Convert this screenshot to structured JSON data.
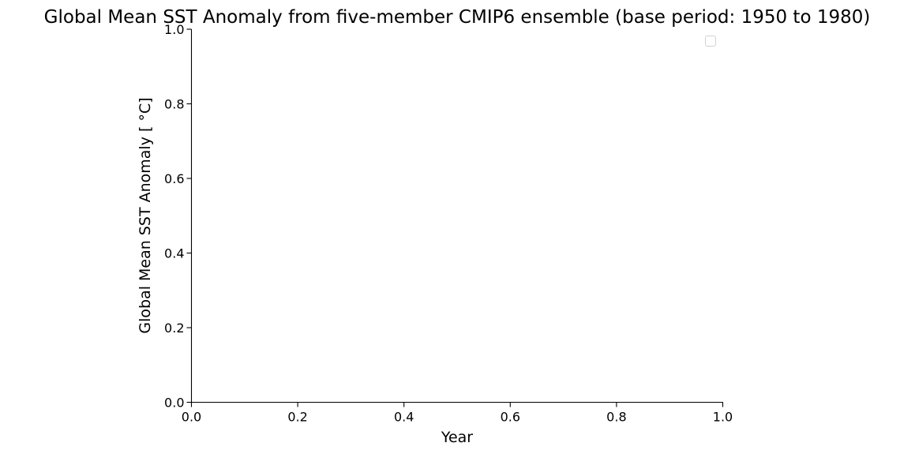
{
  "chart_data": {
    "type": "line",
    "title": "Global Mean SST Anomaly from five-member CMIP6 ensemble (base period: 1950 to 1980)",
    "xlabel": "Year",
    "ylabel": "Global Mean SST Anomaly [$^\\circ$C]",
    "ylabel_display": "Global Mean SST Anomaly [ °C]",
    "xlim": [
      0.0,
      1.0
    ],
    "ylim": [
      0.0,
      1.0
    ],
    "xticks": [
      0.0,
      0.2,
      0.4,
      0.6,
      0.8,
      1.0
    ],
    "xtick_labels": [
      "0.0",
      "0.2",
      "0.4",
      "0.6",
      "0.8",
      "1.0"
    ],
    "yticks": [
      0.0,
      0.2,
      0.4,
      0.6,
      0.8,
      1.0
    ],
    "ytick_labels": [
      "0.0",
      "0.2",
      "0.4",
      "0.6",
      "0.8",
      "1.0"
    ],
    "series": [],
    "legend": {
      "placement": "top-right",
      "entries": []
    },
    "grid": false,
    "spines": {
      "top": false,
      "right": false,
      "left": true,
      "bottom": true
    }
  }
}
